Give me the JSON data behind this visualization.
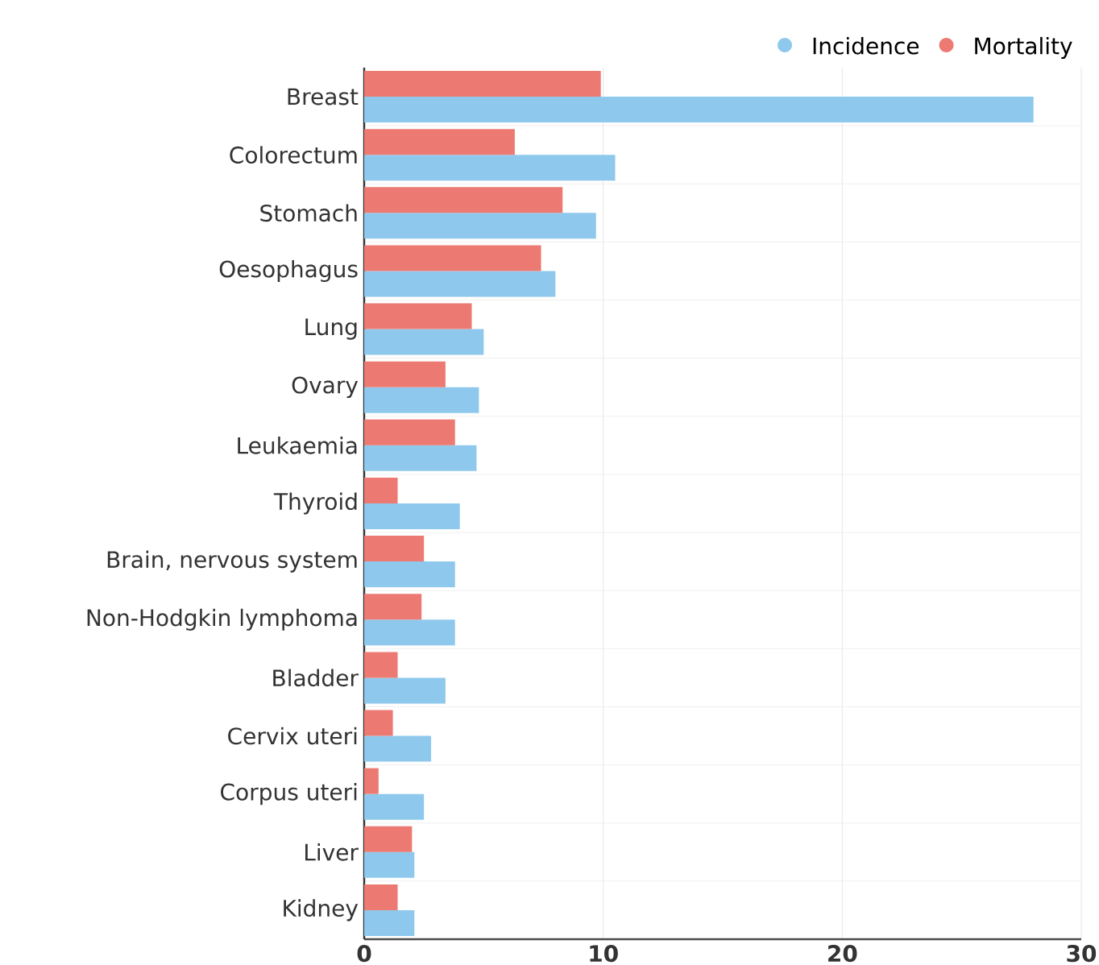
{
  "chart_data": {
    "type": "bar",
    "orientation": "horizontal",
    "categories": [
      "Breast",
      "Colorectum",
      "Stomach",
      "Oesophagus",
      "Lung",
      "Ovary",
      "Leukaemia",
      "Thyroid",
      "Brain, nervous system",
      "Non-Hodgkin lymphoma",
      "Bladder",
      "Cervix uteri",
      "Corpus uteri",
      "Liver",
      "Kidney"
    ],
    "series": [
      {
        "name": "Incidence",
        "color": "#8ec8ec",
        "values": [
          28.0,
          10.5,
          9.7,
          8.0,
          5.0,
          4.8,
          4.7,
          4.0,
          3.8,
          3.8,
          3.4,
          2.8,
          2.5,
          2.1,
          2.1
        ]
      },
      {
        "name": "Mortality",
        "color": "#ec7a72",
        "values": [
          9.9,
          6.3,
          8.3,
          7.4,
          4.5,
          3.4,
          3.8,
          1.4,
          2.5,
          2.4,
          1.4,
          1.2,
          0.6,
          2.0,
          1.4
        ]
      }
    ],
    "xlim": [
      0,
      30
    ],
    "xticks": [
      0,
      10,
      20,
      30
    ],
    "grid": true,
    "legend": "top right"
  }
}
